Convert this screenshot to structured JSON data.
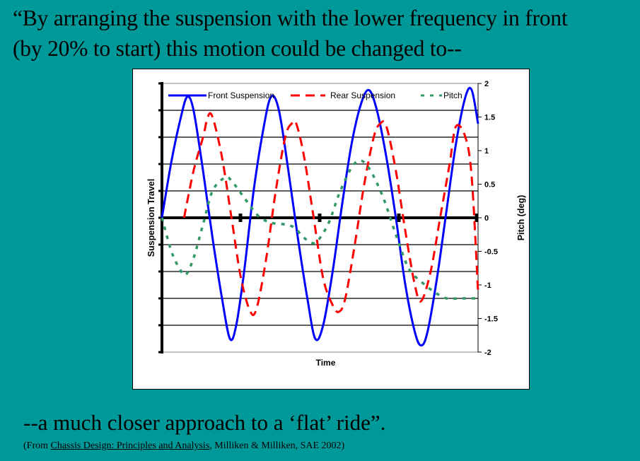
{
  "slide": {
    "title_line1": "“By arranging the suspension with the lower frequency in front",
    "title_line2": "(by 20%  to start) this motion could be changed to--",
    "caption": "--a much closer approach to a ‘flat’ ride”.",
    "source_prefix": "(From ",
    "source_title": "Chassis Design: Principles and Analysis",
    "source_suffix": ", Milliken & Milliken, SAE 2002)",
    "background_color": "#009999"
  },
  "chart_data": {
    "type": "line",
    "title": "",
    "xlabel": "Time",
    "ylabel": "Suspension Travel",
    "y2label": "Pitch (deg)",
    "y2lim": [
      -2,
      2
    ],
    "y2ticks": [
      "2",
      "1.5",
      "1",
      "0.5",
      "0",
      "-0.5",
      "-1",
      "-1.5",
      "-2"
    ],
    "ylim_normalized": [
      -1,
      1
    ],
    "grid": true,
    "legend_position": "top-inside",
    "x_range": [
      0,
      1
    ],
    "series": [
      {
        "name": "Front Suspension",
        "color": "#0000FF",
        "style": "solid",
        "axis": "left",
        "points": [
          [
            0,
            0
          ],
          [
            0.03,
            0.42
          ],
          [
            0.06,
            0.75
          ],
          [
            0.08,
            0.9
          ],
          [
            0.1,
            0.8
          ],
          [
            0.13,
            0.35
          ],
          [
            0.16,
            -0.15
          ],
          [
            0.19,
            -0.6
          ],
          [
            0.215,
            -0.9
          ],
          [
            0.235,
            -0.8
          ],
          [
            0.26,
            -0.4
          ],
          [
            0.29,
            0.2
          ],
          [
            0.32,
            0.65
          ],
          [
            0.345,
            0.9
          ],
          [
            0.37,
            0.8
          ],
          [
            0.4,
            0.35
          ],
          [
            0.43,
            -0.15
          ],
          [
            0.46,
            -0.6
          ],
          [
            0.485,
            -0.9
          ],
          [
            0.51,
            -0.8
          ],
          [
            0.54,
            -0.4
          ],
          [
            0.57,
            0.1
          ],
          [
            0.6,
            0.55
          ],
          [
            0.63,
            0.85
          ],
          [
            0.655,
            0.95
          ],
          [
            0.68,
            0.8
          ],
          [
            0.71,
            0.45
          ],
          [
            0.74,
            0.0
          ],
          [
            0.77,
            -0.5
          ],
          [
            0.8,
            -0.85
          ],
          [
            0.82,
            -0.95
          ],
          [
            0.84,
            -0.85
          ],
          [
            0.87,
            -0.45
          ],
          [
            0.9,
            0.05
          ],
          [
            0.93,
            0.55
          ],
          [
            0.96,
            0.9
          ],
          [
            0.98,
            0.95
          ],
          [
            1.0,
            0.7
          ]
        ]
      },
      {
        "name": "Rear Suspension",
        "color": "#FF0000",
        "style": "dashed",
        "axis": "left",
        "points": [
          [
            0.07,
            0
          ],
          [
            0.1,
            0.35
          ],
          [
            0.13,
            0.6
          ],
          [
            0.145,
            0.75
          ],
          [
            0.16,
            0.75
          ],
          [
            0.19,
            0.45
          ],
          [
            0.22,
            0.0
          ],
          [
            0.25,
            -0.45
          ],
          [
            0.28,
            -0.7
          ],
          [
            0.3,
            -0.67
          ],
          [
            0.33,
            -0.3
          ],
          [
            0.36,
            0.2
          ],
          [
            0.39,
            0.6
          ],
          [
            0.41,
            0.7
          ],
          [
            0.425,
            0.7
          ],
          [
            0.45,
            0.45
          ],
          [
            0.48,
            0.0
          ],
          [
            0.51,
            -0.45
          ],
          [
            0.54,
            -0.65
          ],
          [
            0.56,
            -0.7
          ],
          [
            0.58,
            -0.6
          ],
          [
            0.61,
            -0.2
          ],
          [
            0.64,
            0.25
          ],
          [
            0.67,
            0.6
          ],
          [
            0.69,
            0.7
          ],
          [
            0.71,
            0.68
          ],
          [
            0.74,
            0.35
          ],
          [
            0.77,
            -0.1
          ],
          [
            0.8,
            -0.5
          ],
          [
            0.82,
            -0.62
          ],
          [
            0.85,
            -0.4
          ],
          [
            0.88,
            0.0
          ],
          [
            0.91,
            0.4
          ],
          [
            0.93,
            0.68
          ],
          [
            0.96,
            0.6
          ],
          [
            0.98,
            0.3
          ],
          [
            1.0,
            -0.55
          ]
        ]
      },
      {
        "name": "Pitch",
        "color": "#339966",
        "style": "dotted",
        "axis": "right",
        "points": [
          [
            0,
            0
          ],
          [
            0.03,
            -0.5
          ],
          [
            0.055,
            -0.75
          ],
          [
            0.075,
            -0.85
          ],
          [
            0.1,
            -0.6
          ],
          [
            0.13,
            -0.1
          ],
          [
            0.16,
            0.4
          ],
          [
            0.2,
            0.6
          ],
          [
            0.22,
            0.55
          ],
          [
            0.26,
            0.3
          ],
          [
            0.3,
            0.05
          ],
          [
            0.33,
            -0.05
          ],
          [
            0.35,
            -0.08
          ],
          [
            0.39,
            -0.1
          ],
          [
            0.42,
            -0.15
          ],
          [
            0.45,
            -0.3
          ],
          [
            0.48,
            -0.38
          ],
          [
            0.5,
            -0.3
          ],
          [
            0.53,
            -0.05
          ],
          [
            0.56,
            0.35
          ],
          [
            0.6,
            0.75
          ],
          [
            0.63,
            0.85
          ],
          [
            0.66,
            0.7
          ],
          [
            0.7,
            0.3
          ],
          [
            0.74,
            -0.25
          ],
          [
            0.78,
            -0.75
          ],
          [
            0.82,
            -0.95
          ],
          [
            0.86,
            -1.1
          ],
          [
            0.9,
            -1.2
          ],
          [
            0.94,
            -1.2
          ],
          [
            1.0,
            -1.2
          ]
        ]
      }
    ]
  }
}
